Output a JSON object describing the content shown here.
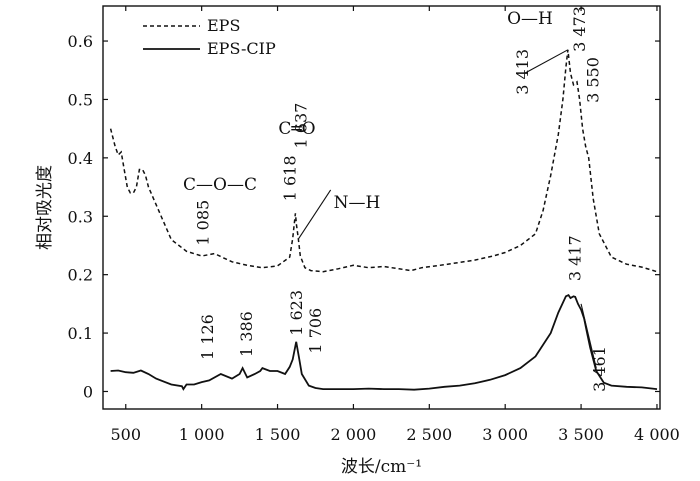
{
  "chart_data": {
    "type": "line",
    "xlabel": "波长/cm⁻¹",
    "ylabel": "相对吸光度",
    "xlim": [
      350,
      4020
    ],
    "ylim": [
      -0.03,
      0.66
    ],
    "x_ticks": [
      500,
      1000,
      1500,
      2000,
      2500,
      3000,
      3500,
      4000
    ],
    "x_tick_labels": [
      "500",
      "1 000",
      "1 500",
      "2 000",
      "2 500",
      "3 000",
      "3 500",
      "4 000"
    ],
    "y_ticks": [
      0,
      0.1,
      0.2,
      0.3,
      0.4,
      0.5,
      0.6
    ],
    "y_tick_labels": [
      "0",
      "0.1",
      "0.2",
      "0.3",
      "0.4",
      "0.5",
      "0.6"
    ],
    "legend_position": "top-left",
    "series": [
      {
        "name": "EPS",
        "style": "dashed",
        "x": [
          400,
          430,
          450,
          470,
          490,
          510,
          530,
          550,
          570,
          590,
          610,
          630,
          650,
          700,
          750,
          800,
          900,
          1000,
          1085,
          1150,
          1200,
          1300,
          1400,
          1500,
          1580,
          1600,
          1618,
          1625,
          1637,
          1650,
          1680,
          1720,
          1800,
          1900,
          2000,
          2050,
          2100,
          2200,
          2300,
          2380,
          2450,
          2600,
          2800,
          2920,
          3000,
          3100,
          3200,
          3250,
          3300,
          3350,
          3380,
          3400,
          3413,
          3430,
          3450,
          3473,
          3490,
          3510,
          3530,
          3550,
          3580,
          3620,
          3700,
          3800,
          3900,
          4000
        ],
        "y": [
          0.45,
          0.42,
          0.405,
          0.41,
          0.38,
          0.35,
          0.34,
          0.34,
          0.35,
          0.38,
          0.38,
          0.37,
          0.35,
          0.32,
          0.29,
          0.26,
          0.24,
          0.232,
          0.236,
          0.228,
          0.222,
          0.216,
          0.212,
          0.215,
          0.23,
          0.262,
          0.305,
          0.285,
          0.262,
          0.232,
          0.212,
          0.207,
          0.205,
          0.21,
          0.216,
          0.214,
          0.212,
          0.214,
          0.21,
          0.207,
          0.212,
          0.217,
          0.225,
          0.232,
          0.238,
          0.25,
          0.27,
          0.31,
          0.37,
          0.44,
          0.5,
          0.555,
          0.585,
          0.545,
          0.525,
          0.53,
          0.5,
          0.45,
          0.42,
          0.4,
          0.33,
          0.27,
          0.23,
          0.218,
          0.213,
          0.205
        ]
      },
      {
        "name": "EPS-CIP",
        "style": "solid",
        "x": [
          400,
          450,
          500,
          550,
          600,
          650,
          700,
          800,
          870,
          880,
          900,
          950,
          1000,
          1050,
          1126,
          1200,
          1250,
          1270,
          1300,
          1350,
          1386,
          1400,
          1450,
          1500,
          1550,
          1580,
          1600,
          1623,
          1640,
          1660,
          1706,
          1750,
          1800,
          1900,
          2000,
          2100,
          2200,
          2300,
          2400,
          2500,
          2600,
          2700,
          2800,
          2900,
          3000,
          3100,
          3200,
          3300,
          3350,
          3400,
          3417,
          3430,
          3450,
          3461,
          3480,
          3500,
          3520,
          3540,
          3560,
          3600,
          3650,
          3700,
          3800,
          3900,
          4000
        ],
        "y": [
          0.035,
          0.036,
          0.033,
          0.032,
          0.036,
          0.03,
          0.022,
          0.012,
          0.009,
          0.004,
          0.012,
          0.012,
          0.016,
          0.019,
          0.03,
          0.022,
          0.03,
          0.04,
          0.024,
          0.03,
          0.035,
          0.04,
          0.035,
          0.035,
          0.03,
          0.042,
          0.055,
          0.085,
          0.06,
          0.03,
          0.01,
          0.006,
          0.004,
          0.004,
          0.004,
          0.005,
          0.004,
          0.004,
          0.003,
          0.005,
          0.008,
          0.01,
          0.014,
          0.02,
          0.028,
          0.04,
          0.06,
          0.1,
          0.135,
          0.163,
          0.165,
          0.16,
          0.163,
          0.162,
          0.15,
          0.14,
          0.125,
          0.1,
          0.075,
          0.035,
          0.015,
          0.01,
          0.008,
          0.007,
          0.004
        ]
      }
    ],
    "annotations": [
      {
        "text": "1 085",
        "x": 1085,
        "y": 0.236,
        "series": "EPS"
      },
      {
        "text": "1 618",
        "x": 1618,
        "y": 0.305,
        "series": "EPS"
      },
      {
        "text": "1 637",
        "x": 1637,
        "y": 0.262,
        "series": "EPS"
      },
      {
        "text": "3 413",
        "x": 3413,
        "y": 0.585,
        "series": "EPS"
      },
      {
        "text": "3 473",
        "x": 3473,
        "y": 0.53,
        "series": "EPS"
      },
      {
        "text": "3 550",
        "x": 3550,
        "y": 0.4,
        "series": "EPS"
      },
      {
        "text": "1 126",
        "x": 1126,
        "y": 0.03,
        "series": "EPS-CIP"
      },
      {
        "text": "1 386",
        "x": 1386,
        "y": 0.035,
        "series": "EPS-CIP"
      },
      {
        "text": "1 623",
        "x": 1623,
        "y": 0.085,
        "series": "EPS-CIP"
      },
      {
        "text": "1 706",
        "x": 1706,
        "y": 0.01,
        "series": "EPS-CIP"
      },
      {
        "text": "3 417",
        "x": 3417,
        "y": 0.165,
        "series": "EPS-CIP"
      },
      {
        "text": "3 461",
        "x": 3461,
        "y": 0.162,
        "series": "EPS-CIP"
      }
    ],
    "bond_labels": [
      "C—O—C",
      "C═O",
      "N—H",
      "O—H"
    ]
  }
}
